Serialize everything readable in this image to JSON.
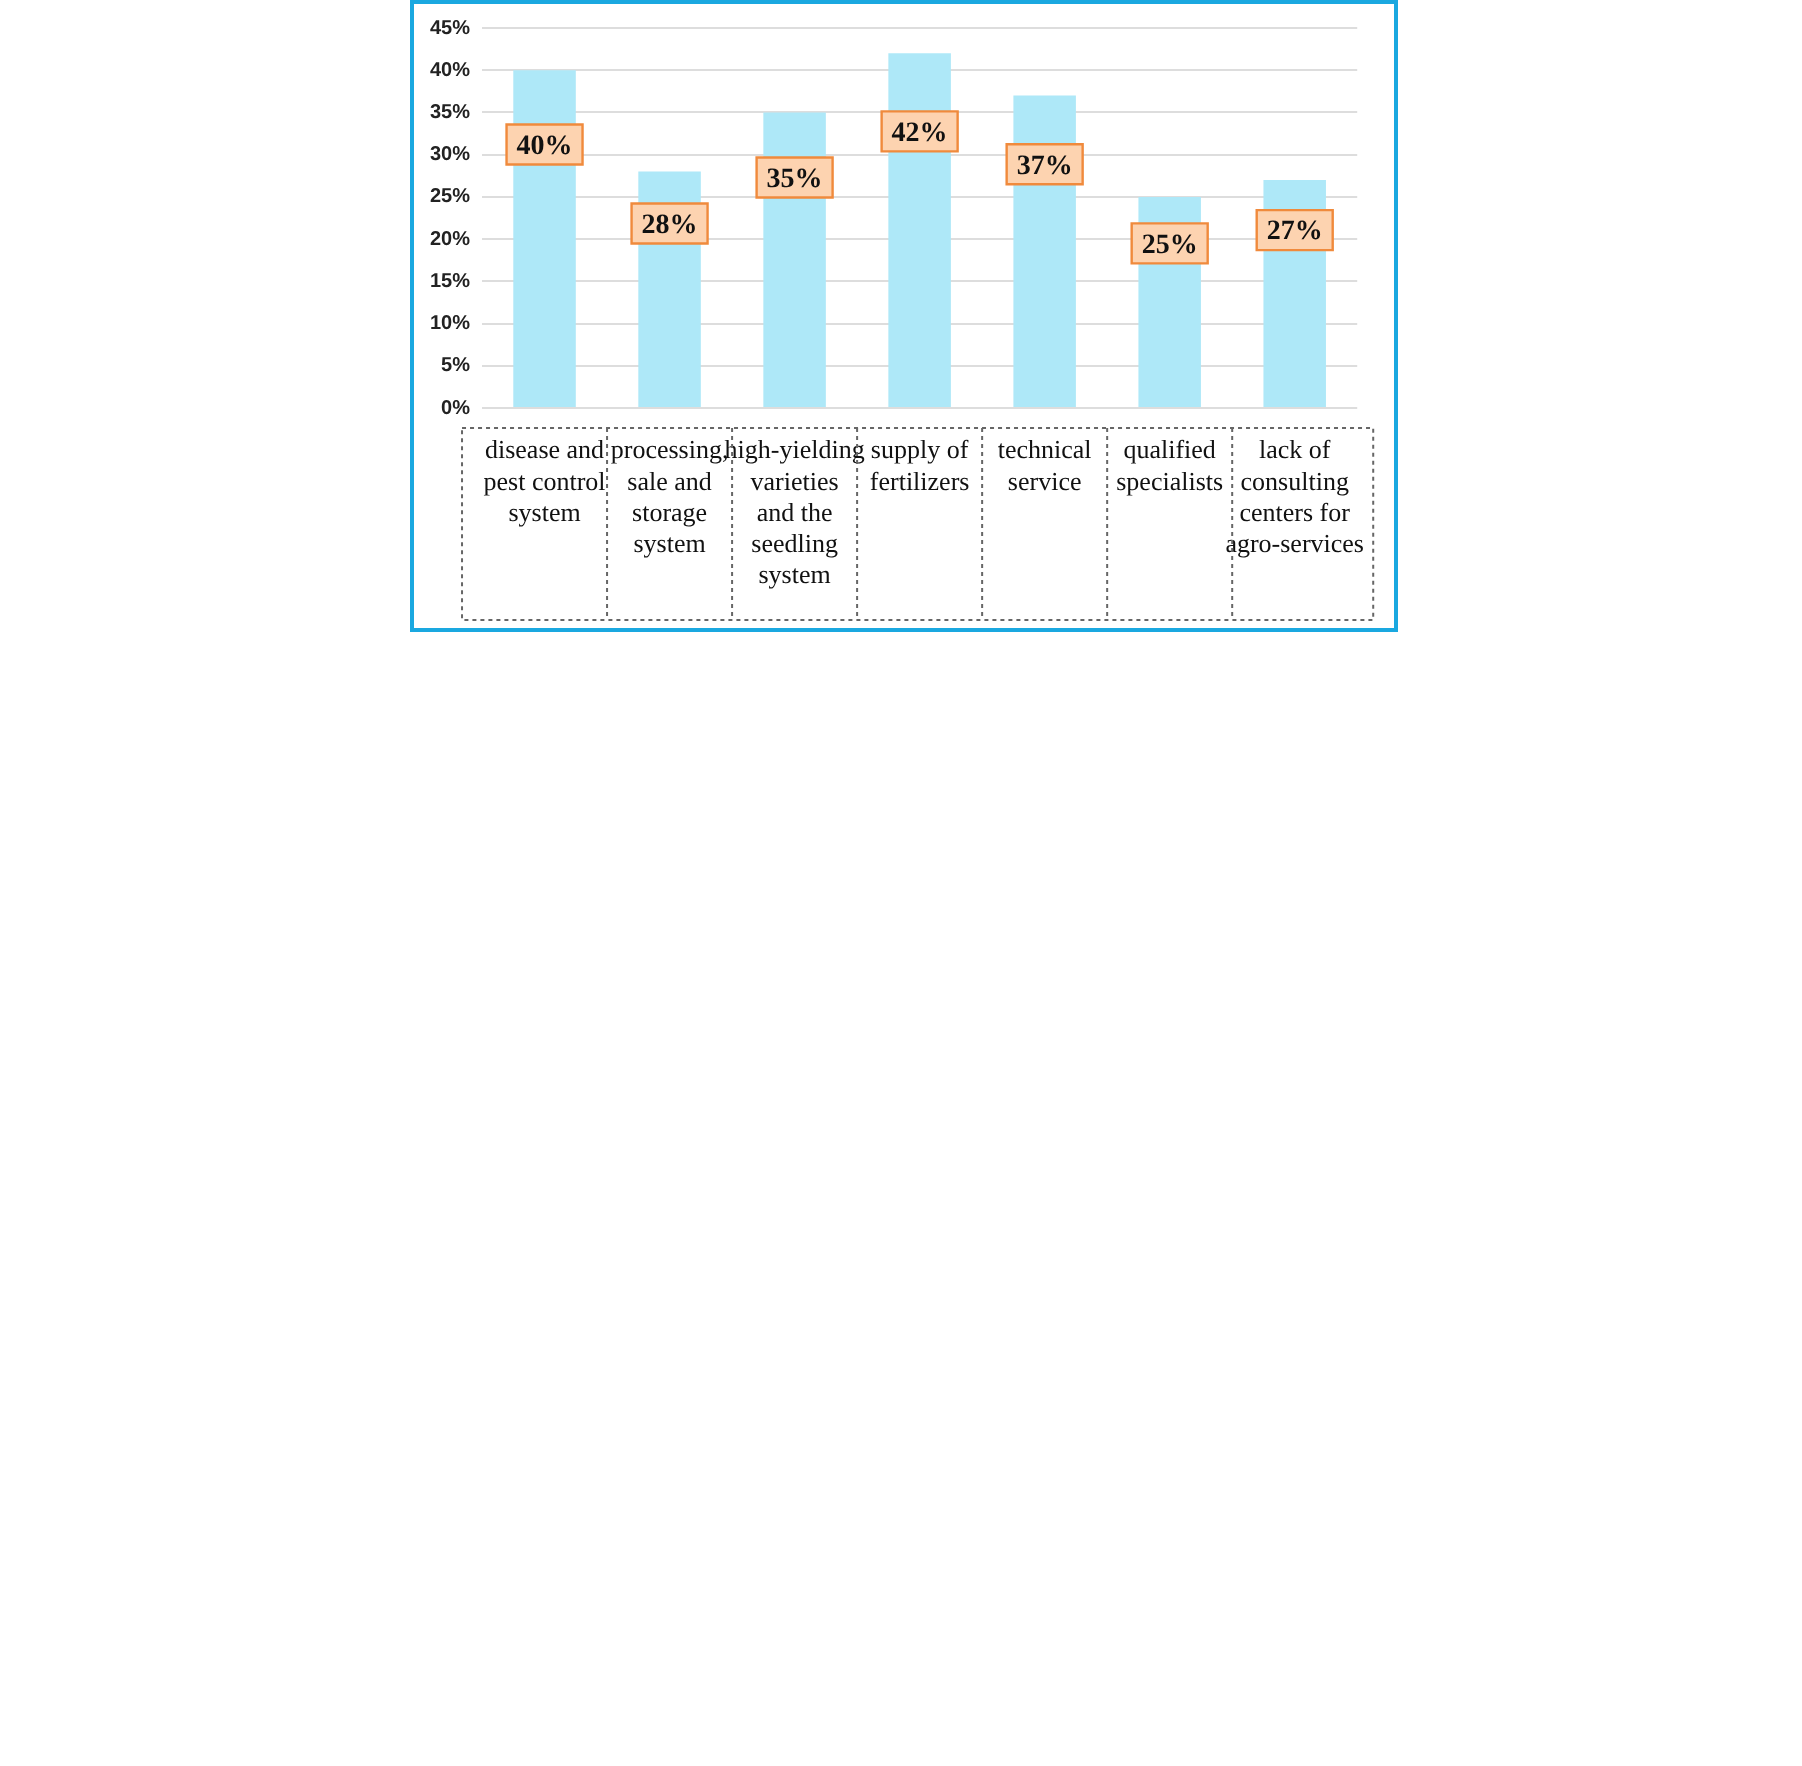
{
  "chart_data": {
    "type": "bar",
    "categories": [
      "disease and pest control system",
      "processing, sale and storage system",
      "high-yielding varieties and the seedling system",
      "supply of fertilizers",
      "technical service",
      "qualified specialists",
      "lack of consulting centers for agro-services"
    ],
    "values": [
      40,
      28,
      35,
      42,
      37,
      25,
      27
    ],
    "color": "#aee8f8",
    "ylim": [
      0,
      45
    ],
    "yticks": [
      {
        "value": 0,
        "label": "0%"
      },
      {
        "value": 5,
        "label": "5%"
      },
      {
        "value": 10,
        "label": "10%"
      },
      {
        "value": 15,
        "label": "15%"
      },
      {
        "value": 20,
        "label": "20%"
      },
      {
        "value": 25,
        "label": "25%"
      },
      {
        "value": 30,
        "label": "30%"
      },
      {
        "value": 35,
        "label": "35%"
      },
      {
        "value": 40,
        "label": "40%"
      },
      {
        "value": 45,
        "label": "45%"
      }
    ],
    "value_labels": [
      "40%",
      "28%",
      "35%",
      "42%",
      "37%",
      "25%",
      "27%"
    ],
    "grid": "y",
    "legend": false
  }
}
